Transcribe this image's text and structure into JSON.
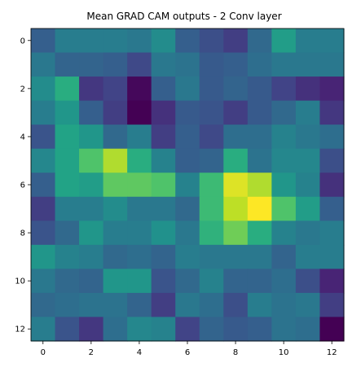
{
  "chart_data": {
    "type": "heatmap",
    "title": "Mean GRAD CAM outputs - 2 Conv layer",
    "colormap": "viridis",
    "xlabel": "",
    "ylabel": "",
    "x_ticks": [
      0,
      2,
      4,
      6,
      8,
      10,
      12
    ],
    "y_ticks": [
      0,
      2,
      4,
      6,
      8,
      10,
      12
    ],
    "x_tick_labels": [
      "0",
      "2",
      "4",
      "6",
      "8",
      "10",
      "12"
    ],
    "y_tick_labels": [
      "0",
      "2",
      "4",
      "6",
      "8",
      "10",
      "12"
    ],
    "grid": false,
    "values": [
      [
        0.3,
        0.42,
        0.42,
        0.42,
        0.4,
        0.48,
        0.3,
        0.24,
        0.18,
        0.34,
        0.55,
        0.42,
        0.42
      ],
      [
        0.4,
        0.32,
        0.32,
        0.3,
        0.22,
        0.4,
        0.38,
        0.28,
        0.3,
        0.36,
        0.4,
        0.4,
        0.4
      ],
      [
        0.48,
        0.62,
        0.16,
        0.2,
        0.02,
        0.3,
        0.4,
        0.28,
        0.32,
        0.28,
        0.2,
        0.14,
        0.1
      ],
      [
        0.42,
        0.52,
        0.3,
        0.18,
        0.0,
        0.14,
        0.28,
        0.26,
        0.18,
        0.28,
        0.34,
        0.42,
        0.16
      ],
      [
        0.26,
        0.58,
        0.52,
        0.34,
        0.42,
        0.18,
        0.3,
        0.22,
        0.36,
        0.36,
        0.44,
        0.4,
        0.36
      ],
      [
        0.46,
        0.58,
        0.72,
        0.88,
        0.62,
        0.44,
        0.3,
        0.32,
        0.62,
        0.38,
        0.46,
        0.46,
        0.24
      ],
      [
        0.3,
        0.58,
        0.55,
        0.75,
        0.75,
        0.72,
        0.44,
        0.68,
        0.95,
        0.88,
        0.52,
        0.44,
        0.14
      ],
      [
        0.18,
        0.42,
        0.42,
        0.48,
        0.4,
        0.4,
        0.34,
        0.68,
        0.9,
        1.0,
        0.72,
        0.55,
        0.3
      ],
      [
        0.26,
        0.34,
        0.52,
        0.42,
        0.42,
        0.5,
        0.4,
        0.64,
        0.78,
        0.62,
        0.44,
        0.4,
        0.42
      ],
      [
        0.52,
        0.44,
        0.42,
        0.34,
        0.36,
        0.32,
        0.42,
        0.4,
        0.4,
        0.4,
        0.32,
        0.42,
        0.42
      ],
      [
        0.4,
        0.34,
        0.32,
        0.52,
        0.52,
        0.26,
        0.34,
        0.44,
        0.32,
        0.32,
        0.36,
        0.24,
        0.1
      ],
      [
        0.34,
        0.36,
        0.38,
        0.38,
        0.32,
        0.18,
        0.4,
        0.36,
        0.24,
        0.42,
        0.38,
        0.4,
        0.18
      ],
      [
        0.42,
        0.26,
        0.16,
        0.36,
        0.46,
        0.44,
        0.2,
        0.32,
        0.28,
        0.3,
        0.38,
        0.36,
        0.0
      ]
    ]
  }
}
